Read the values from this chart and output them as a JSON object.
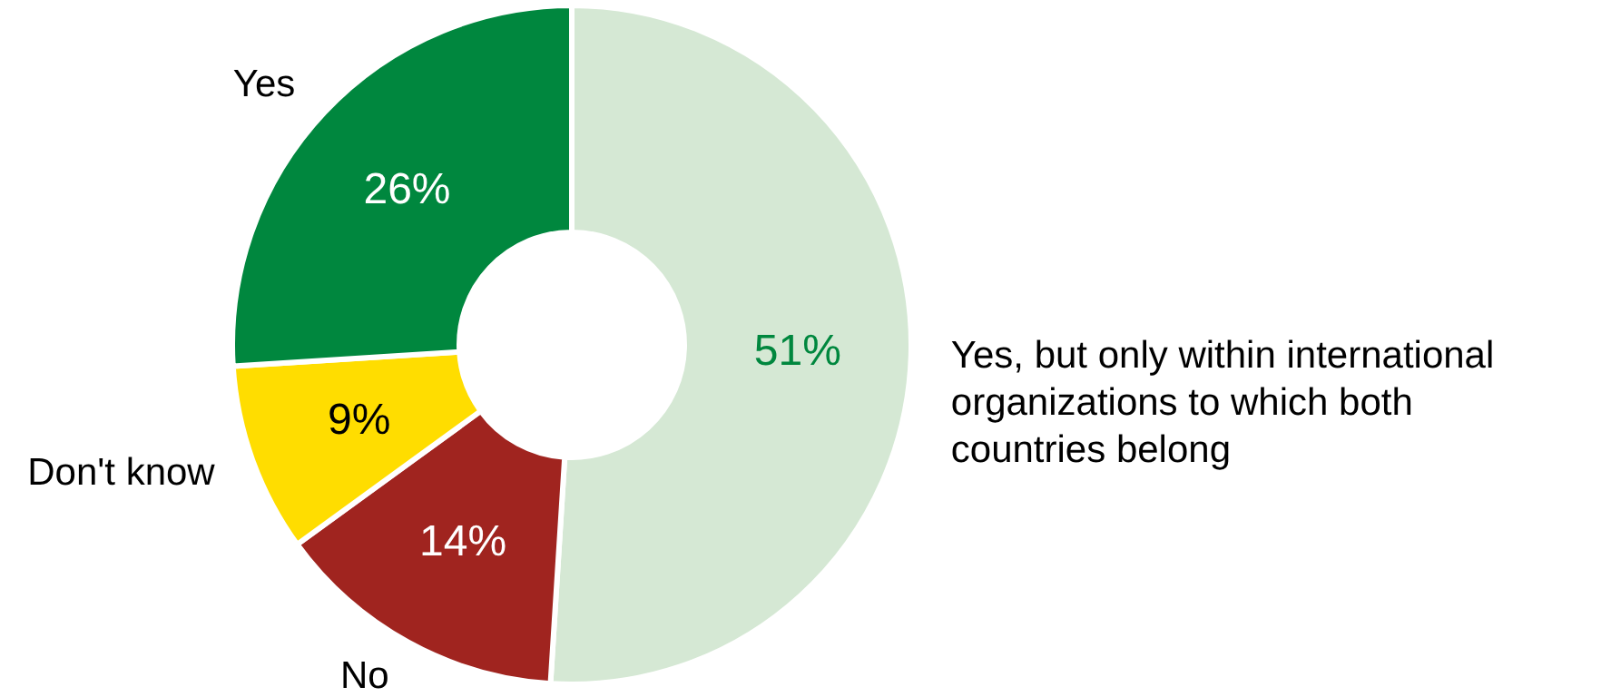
{
  "chart_data": {
    "type": "donut",
    "categories": [
      "Yes, but only within international organizations to which both countries belong",
      "No",
      "Don't know",
      "Yes"
    ],
    "values": [
      51,
      14,
      9,
      26
    ],
    "colors": [
      "#d5e8d4",
      "#a0241f",
      "#ffdd00",
      "#00873e"
    ],
    "value_labels": [
      "51%",
      "14%",
      "9%",
      "26%"
    ]
  }
}
